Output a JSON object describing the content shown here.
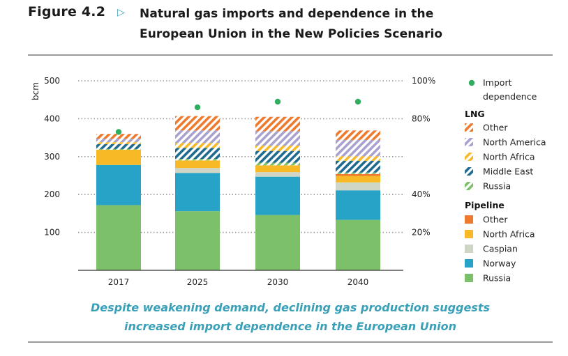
{
  "figure": {
    "label": "Figure 4.2",
    "arrow": "▷",
    "title_line1": "Natural gas imports and dependence in the",
    "title_line2": "European Union in the New Policies Scenario"
  },
  "caption": {
    "line1": "Despite weakening demand, declining gas production suggests",
    "line2": "increased import dependence in the European Union"
  },
  "colors": {
    "russia": "#7dc06a",
    "norway": "#26a3c6",
    "caspian": "#cfd6c6",
    "north_africa": "#f7b925",
    "other": "#ee7a2e",
    "middle_east": "#1e6a8f",
    "north_america": "#a7a2ce",
    "dot": "#2fae5f",
    "grid": "#9a9a9a",
    "axis": "#333333"
  },
  "chart_data": {
    "type": "bar",
    "stacked": true,
    "categories": [
      "2017",
      "2025",
      "2030",
      "2040"
    ],
    "ylabel": "bcm",
    "ylim": [
      0,
      500
    ],
    "yticks": [
      100,
      200,
      300,
      400,
      500
    ],
    "y2lim": [
      0,
      100
    ],
    "y2ticks": [
      "20%",
      "40%",
      "80%",
      "100%"
    ],
    "y2tick_values": [
      20,
      40,
      80,
      100
    ],
    "grid": "dotted",
    "series": [
      {
        "name": "Russia",
        "group": "Pipeline",
        "hatched": false,
        "color_key": "russia",
        "values": [
          172,
          156,
          146,
          133
        ]
      },
      {
        "name": "Norway",
        "group": "Pipeline",
        "hatched": false,
        "color_key": "norway",
        "values": [
          106,
          101,
          101,
          78
        ]
      },
      {
        "name": "Caspian",
        "group": "Pipeline",
        "hatched": false,
        "color_key": "caspian",
        "values": [
          0,
          13,
          12,
          21
        ]
      },
      {
        "name": "North Africa",
        "group": "Pipeline",
        "hatched": false,
        "color_key": "north_africa",
        "values": [
          40,
          20,
          18,
          17
        ]
      },
      {
        "name": "Other",
        "group": "Pipeline",
        "hatched": false,
        "color_key": "other",
        "values": [
          0,
          0,
          0,
          5
        ]
      },
      {
        "name": "Russia",
        "group": "LNG",
        "hatched": true,
        "color_key": "russia",
        "values": [
          2,
          4,
          7,
          4
        ]
      },
      {
        "name": "Middle East",
        "group": "LNG",
        "hatched": true,
        "color_key": "middle_east",
        "values": [
          13,
          29,
          31,
          31
        ]
      },
      {
        "name": "North Africa",
        "group": "LNG",
        "hatched": true,
        "color_key": "north_africa",
        "values": [
          5,
          13,
          14,
          12
        ]
      },
      {
        "name": "North America",
        "group": "LNG",
        "hatched": true,
        "color_key": "north_america",
        "values": [
          9,
          33,
          38,
          43
        ]
      },
      {
        "name": "Other",
        "group": "LNG",
        "hatched": true,
        "color_key": "other",
        "values": [
          13,
          38,
          38,
          25
        ]
      }
    ],
    "import_dependence": {
      "name": "Import dependence",
      "values_pct": [
        73,
        86,
        89,
        89
      ]
    },
    "legend": {
      "placement": "right",
      "dot_label_line1": "Import",
      "dot_label_line2": "dependence",
      "lng_heading": "LNG",
      "lng_items": [
        "Other",
        "North America",
        "North Africa",
        "Middle East",
        "Russia"
      ],
      "lng_keys": [
        "other",
        "north_america",
        "north_africa",
        "middle_east",
        "russia"
      ],
      "pipeline_heading": "Pipeline",
      "pipeline_items": [
        "Other",
        "North Africa",
        "Caspian",
        "Norway",
        "Russia"
      ],
      "pipeline_keys": [
        "other",
        "north_africa",
        "caspian",
        "norway",
        "russia"
      ]
    }
  }
}
